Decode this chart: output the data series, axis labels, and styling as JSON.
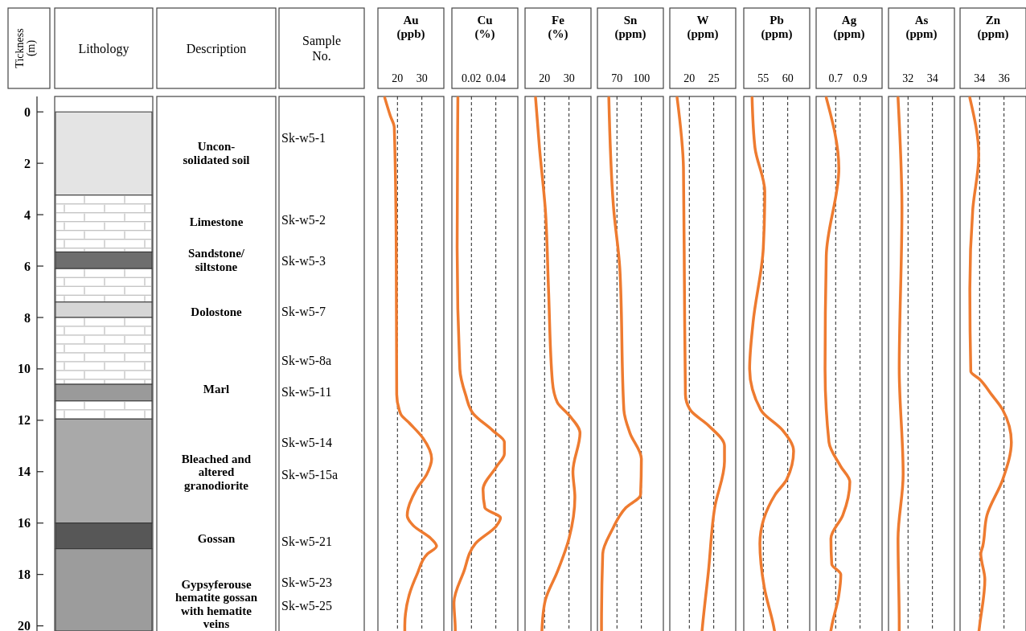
{
  "chart_data": [
    {
      "type": "bar",
      "stacked": true,
      "ylabel": "Tickness (m)",
      "categories": [
        "Lithology",
        "Description",
        "Sample No."
      ],
      "ylim": [
        20.2,
        -0.6
      ],
      "yticks": [
        0,
        2,
        4,
        6,
        8,
        10,
        12,
        14,
        16,
        18,
        20
      ],
      "series": [
        {
          "color": "#e4e4e4",
          "values": [
            3.24,
            null,
            null
          ]
        },
        {
          "color": "#ffffff",
          "values": [
            2.21,
            null,
            null
          ]
        },
        {
          "color": "#6e6e6e",
          "values": [
            0.65,
            null,
            null
          ]
        },
        {
          "color": "#ffffff",
          "values": [
            1.3,
            null,
            null
          ]
        },
        {
          "color": "#d6d6d6",
          "values": [
            0.6,
            null,
            null
          ]
        },
        {
          "color": "#ffffff",
          "values": [
            2.6,
            null,
            null
          ]
        },
        {
          "color": "#9a9a9a",
          "values": [
            0.65,
            null,
            null
          ]
        },
        {
          "color": "#ffffff",
          "values": [
            0.7,
            null,
            null
          ]
        },
        {
          "color": "#a9a9a9",
          "values": [
            4.05,
            null,
            null
          ]
        },
        {
          "color": "#575757",
          "values": [
            1.0,
            null,
            null
          ]
        },
        {
          "color": "#9c9c9c",
          "values": [
            3.2,
            null,
            null
          ]
        }
      ],
      "annotations": [
        "Uncon-\nsolidated soil",
        "Limestone",
        "Sandstone/\nsiltstone",
        "Dolostone",
        "Marl",
        "Bleached and\naltered\ngranodiorite",
        "Gossan",
        "Gypsyferouse\nhematite gossan\nwith hematite\nveins",
        "Sk-w5-1",
        "Sk-w5-2",
        "Sk-w5-3",
        "Sk-w5-7",
        "Sk-w5-8a",
        "Sk-w5-11",
        "Sk-w5-14",
        "Sk-w5-15a",
        "Sk-w5-21",
        "Sk-w5-23",
        "Sk-w5-25"
      ]
    },
    {
      "type": "line",
      "title": "Au\n(ppb)",
      "xlim": [
        12,
        39
      ],
      "xticks": [
        20,
        30
      ],
      "ylim": [
        20.2,
        -0.6
      ],
      "grid": "x",
      "tick_labels": "x",
      "line_style": "solid",
      "series": [
        {
          "color": "#ee7b30",
          "x": [
            14.8,
            17.1,
            18.7,
            19.5,
            19.7,
            21.3,
            24.8,
            30.5,
            34,
            32,
            27.7,
            24,
            26.5,
            33.7,
            36,
            32.3,
            28,
            24.8,
            23,
            23
          ],
          "values": [
            -0.55,
            0.16,
            0.6,
            5.3,
            11.0,
            11.75,
            12.1,
            12.7,
            13.5,
            14.1,
            14.7,
            15.7,
            16.1,
            16.6,
            16.9,
            17.2,
            18.0,
            18.8,
            20.0,
            20.2
          ]
        }
      ]
    },
    {
      "type": "line",
      "title": "Cu\n(%)",
      "xlim": [
        0.004,
        0.058
      ],
      "xticks": [
        {
          "value": 0.02,
          "label": "0.02"
        },
        {
          "value": 0.04,
          "label": "0.04"
        }
      ],
      "ylim": [
        20.2,
        -0.6
      ],
      "grid": "x",
      "tick_labels": "x",
      "line_style": "solid",
      "series": [
        {
          "color": "#ee7b30",
          "x": [
            0.0089,
            0.0083,
            0.0105,
            0.0152,
            0.0216,
            0.0375,
            0.047,
            0.047,
            0.0406,
            0.0295,
            0.031,
            0.0438,
            0.0406,
            0.0232,
            0.0137,
            0.0057,
            0.0067,
            0.0068
          ],
          "values": [
            -0.55,
            5.3,
            10.0,
            11.0,
            11.75,
            12.4,
            12.85,
            13.3,
            13.8,
            14.7,
            15.4,
            15.8,
            16.1,
            16.8,
            17.9,
            19.1,
            20.0,
            20.2
          ]
        }
      ]
    },
    {
      "type": "line",
      "title": "Fe\n(%)",
      "xlim": [
        12,
        39
      ],
      "xticks": [
        20,
        30
      ],
      "ylim": [
        20.2,
        -0.6
      ],
      "grid": "x",
      "tick_labels": "x",
      "line_style": "solid",
      "series": [
        {
          "color": "#ee7b30",
          "x": [
            16.3,
            17.9,
            20.3,
            21.6,
            23.2,
            25.2,
            30,
            34.5,
            31.6,
            32.4,
            30,
            25.2,
            20.3,
            19,
            18.9
          ],
          "values": [
            -0.55,
            1.4,
            3.8,
            6.9,
            10.5,
            11.3,
            11.8,
            12.5,
            14.0,
            15.0,
            16.6,
            17.9,
            19.0,
            20.0,
            20.2
          ]
        }
      ]
    },
    {
      "type": "line",
      "title": "Sn\n(ppm)",
      "xlim": [
        46,
        127
      ],
      "xticks": [
        70,
        100
      ],
      "ylim": [
        20.2,
        -0.6
      ],
      "grid": "x",
      "tick_labels": "x",
      "line_style": "solid",
      "series": [
        {
          "color": "#ee7b30",
          "x": [
            60,
            66,
            73.5,
            78.5,
            86,
            100,
            99,
            81,
            63.5,
            52.5,
            51,
            51
          ],
          "values": [
            -0.55,
            3.8,
            6.1,
            11.6,
            12.5,
            13.5,
            14.9,
            15.4,
            16.3,
            17.2,
            20.0,
            20.2
          ]
        }
      ]
    },
    {
      "type": "line",
      "title": "W\n(ppm)",
      "xlim": [
        16,
        29.5
      ],
      "xticks": [
        20,
        25
      ],
      "ylim": [
        20.2,
        -0.6
      ],
      "grid": "x",
      "tick_labels": "x",
      "line_style": "solid",
      "series": [
        {
          "color": "#ee7b30",
          "x": [
            17.5,
            18.8,
            19,
            19.2,
            20.2,
            23.9,
            27.2,
            27.2,
            25.2,
            23.9,
            22.7,
            22.6
          ],
          "values": [
            -0.55,
            2.2,
            6.9,
            11.0,
            11.6,
            12.2,
            13.0,
            13.6,
            15.4,
            17.9,
            20.0,
            20.2
          ]
        }
      ]
    },
    {
      "type": "line",
      "title": "Pb\n(ppm)",
      "xlim": [
        51,
        64.5
      ],
      "xticks": [
        55,
        60
      ],
      "ylim": [
        20.2,
        -0.6
      ],
      "grid": "x",
      "tick_labels": "x",
      "line_style": "solid",
      "series": [
        {
          "color": "#ee7b30",
          "x": [
            52.7,
            53.3,
            55.3,
            55,
            52.9,
            52.2,
            54.5,
            59,
            61.2,
            59.8,
            57.4,
            54.3,
            55.2,
            57.1,
            57.3
          ],
          "values": [
            -0.55,
            1.4,
            3.1,
            5.3,
            8.2,
            10.0,
            11.6,
            12.4,
            13.2,
            14.3,
            14.9,
            16.8,
            18.5,
            20.0,
            20.2
          ]
        }
      ]
    },
    {
      "type": "line",
      "title": "Ag\n(ppm)",
      "xlim": [
        0.54,
        1.08
      ],
      "xticks": [
        {
          "value": 0.7,
          "label": "0.7"
        },
        {
          "value": 0.9,
          "label": "0.9"
        }
      ],
      "ylim": [
        20.2,
        -0.6
      ],
      "grid": "x",
      "tick_labels": "x",
      "line_style": "solid",
      "series": [
        {
          "color": "#ee7b30",
          "x": [
            0.623,
            0.726,
            0.623,
            0.613,
            0.645,
            0.742,
            0.816,
            0.758,
            0.661,
            0.668,
            0.742,
            0.726,
            0.668,
            0.66
          ],
          "values": [
            -0.55,
            2.2,
            5.6,
            10.0,
            12.85,
            13.8,
            14.4,
            15.7,
            16.6,
            17.6,
            18.0,
            18.8,
            20.0,
            20.2
          ]
        }
      ]
    },
    {
      "type": "line",
      "title": "As\n(ppm)",
      "xlim": [
        30.4,
        35.8
      ],
      "xticks": [
        32,
        34
      ],
      "ylim": [
        20.2,
        -0.6
      ],
      "grid": "x",
      "tick_labels": "x",
      "line_style": "solid",
      "series": [
        {
          "color": "#ee7b30",
          "x": [
            31.18,
            31.5,
            31.28,
            31.6,
            31.18,
            31.28,
            31.28
          ],
          "values": [
            -0.55,
            3.8,
            10.0,
            14.1,
            16.6,
            20.0,
            20.2
          ]
        }
      ]
    },
    {
      "type": "line",
      "title": "Zn\n(ppm)",
      "xlim": [
        32.4,
        37.8
      ],
      "xticks": [
        34,
        36
      ],
      "ylim": [
        20.2,
        -0.6
      ],
      "grid": "x",
      "tick_labels": "x",
      "line_style": "solid",
      "series": [
        {
          "color": "#ee7b30",
          "x": [
            33.2,
            33.93,
            33.44,
            33.2,
            33.28,
            34,
            34.98,
            35.9,
            36.6,
            35.9,
            34.6,
            34.26,
            34.1,
            34.43,
            34,
            33.95
          ],
          "values": [
            -0.55,
            1.7,
            3.8,
            6.9,
            10.1,
            10.4,
            11.0,
            11.6,
            12.85,
            14.3,
            15.7,
            16.9,
            17.2,
            18.2,
            20.0,
            20.2
          ]
        }
      ]
    }
  ]
}
